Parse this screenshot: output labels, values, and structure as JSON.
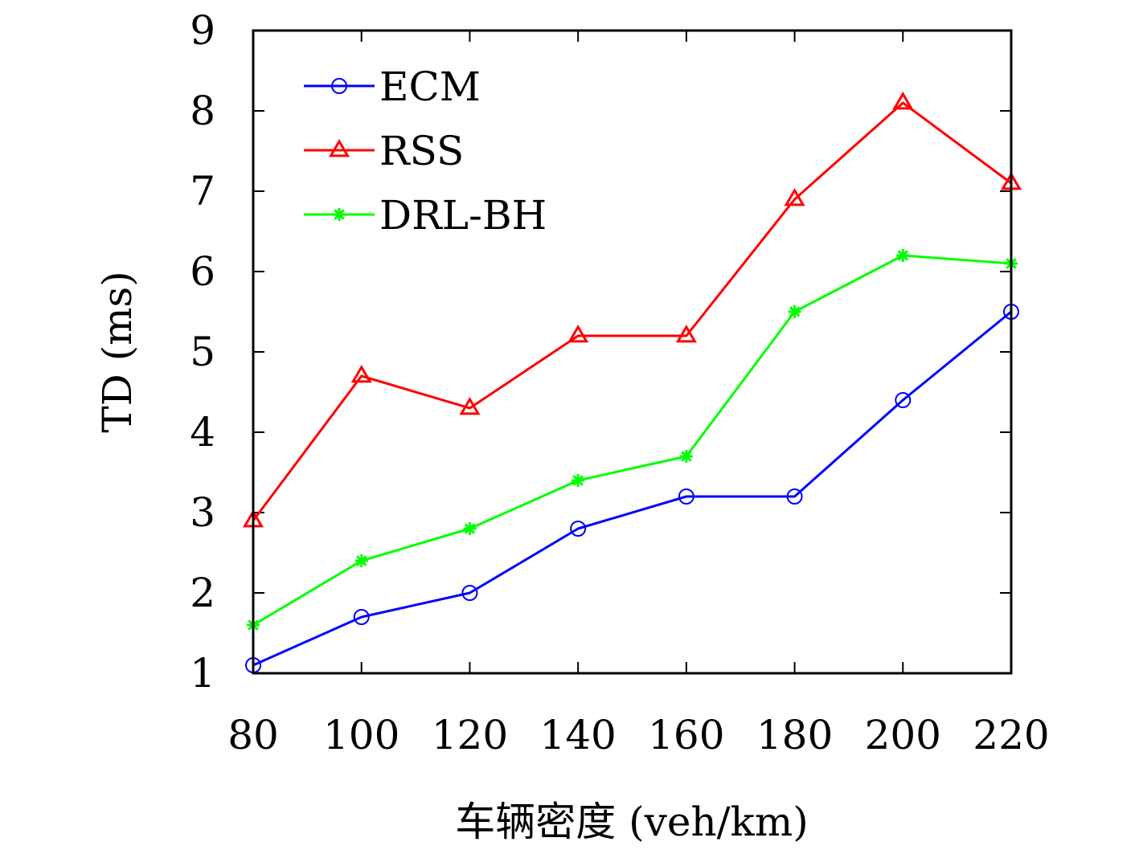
{
  "chart_data": {
    "type": "line",
    "x": [
      80,
      100,
      120,
      140,
      160,
      180,
      200,
      220
    ],
    "x_tick_labels": [
      "80",
      "100",
      "120",
      "140",
      "160",
      "180",
      "200",
      "220"
    ],
    "y_tick_labels": [
      "1",
      "2",
      "3",
      "4",
      "5",
      "6",
      "7",
      "8",
      "9"
    ],
    "xlim": [
      80,
      220
    ],
    "ylim": [
      1,
      9
    ],
    "xlabel": "车辆密度 (veh/km)",
    "ylabel": "TD (ms)",
    "grid": false,
    "legend_position": "top-left",
    "series": [
      {
        "name": "ECM",
        "color": "#0000ff",
        "marker": "circle",
        "values": [
          1.1,
          1.7,
          2.0,
          2.8,
          3.2,
          3.2,
          4.4,
          5.5
        ]
      },
      {
        "name": "RSS",
        "color": "#ff0000",
        "marker": "triangle",
        "values": [
          2.9,
          4.7,
          4.3,
          5.2,
          5.2,
          6.9,
          8.1,
          7.1
        ]
      },
      {
        "name": "DRL-BH",
        "color": "#00ff00",
        "marker": "asterisk",
        "values": [
          1.6,
          2.4,
          2.8,
          3.4,
          3.7,
          5.5,
          6.2,
          6.1
        ]
      }
    ]
  }
}
